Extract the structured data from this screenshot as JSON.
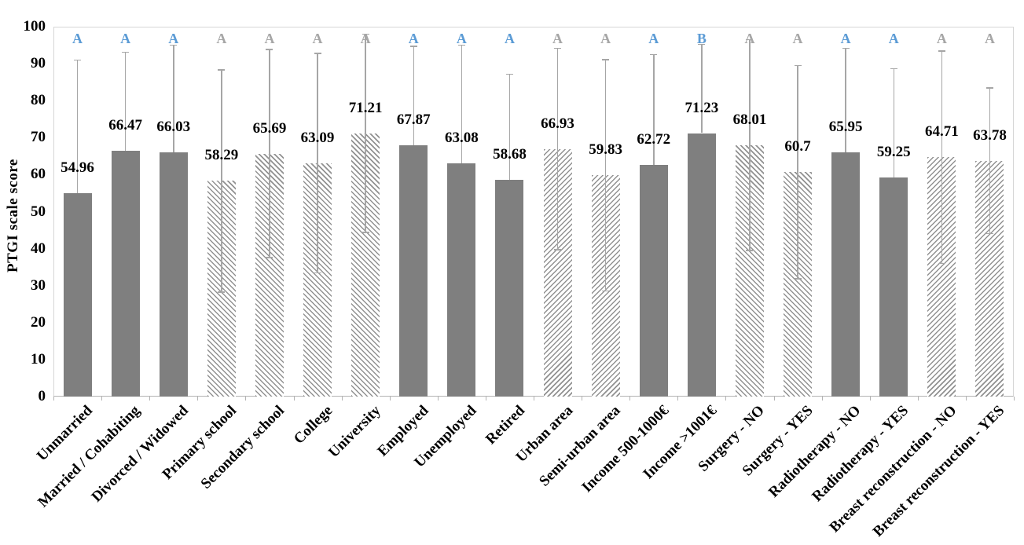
{
  "chart_data": {
    "type": "bar",
    "title": "",
    "xlabel": "",
    "ylabel": "PTGI scale score",
    "ylim": [
      0,
      100
    ],
    "yticks": [
      0,
      10,
      20,
      30,
      40,
      50,
      60,
      70,
      80,
      90,
      100
    ],
    "grid": "off",
    "legend": "none",
    "categories": [
      "Unmarried",
      "Married / Cohabiting",
      "Divorced / Widowed",
      "Primary school",
      "Secondary school",
      "College",
      "University",
      "Employed",
      "Unemployed",
      "Retired",
      "Urban area",
      "Semi-urban area",
      "Income 500-1000€",
      "Income >1001€",
      "Surgery - NO",
      "Surgery - YES",
      "Radiotherapy - NO",
      "Radiotherapy - YES",
      "Breast reconstruction - NO",
      "Breast reconstruction - YES"
    ],
    "values": [
      54.96,
      66.47,
      66.03,
      58.29,
      65.69,
      63.09,
      71.21,
      67.87,
      63.08,
      58.68,
      66.93,
      59.83,
      62.72,
      71.23,
      68.01,
      60.7,
      65.95,
      59.25,
      64.71,
      63.78
    ],
    "value_labels": [
      "54.96",
      "66.47",
      "66.03",
      "58.29",
      "65.69",
      "63.09",
      "71.21",
      "67.87",
      "63.08",
      "58.68",
      "66.93",
      "59.83",
      "62.72",
      "71.23",
      "68.01",
      "60.7",
      "65.95",
      "59.25",
      "64.71",
      "63.78"
    ],
    "error_sd_estimated": [
      36.0,
      26.6,
      29.0,
      30.0,
      28.1,
      29.7,
      26.8,
      26.8,
      31.9,
      28.5,
      27.2,
      31.3,
      29.7,
      24.0,
      28.5,
      28.8,
      28.2,
      29.4,
      28.7,
      19.7
    ],
    "bar_patterns": [
      "solid",
      "solid",
      "solid",
      "diag-back",
      "diag-back",
      "diag-back",
      "diag-back",
      "solid",
      "solid",
      "solid",
      "diag-fwd",
      "diag-fwd",
      "solid",
      "solid",
      "diag-back",
      "diag-back",
      "solid",
      "solid",
      "diag-fwd",
      "diag-fwd"
    ],
    "significance_letters": [
      "A",
      "A",
      "A",
      "A",
      "A",
      "A",
      "A",
      "A",
      "A",
      "A",
      "A",
      "A",
      "A",
      "B",
      "A",
      "A",
      "A",
      "A",
      "A",
      "A"
    ],
    "letter_colors": [
      "blue",
      "blue",
      "blue",
      "gray",
      "gray",
      "gray",
      "gray",
      "blue",
      "blue",
      "blue",
      "gray",
      "gray",
      "blue",
      "blue",
      "gray",
      "gray",
      "blue",
      "blue",
      "gray",
      "gray"
    ],
    "colors": {
      "bar_fill": "#7f7f7f",
      "hatch_line": "#919191",
      "error_bar": "#a6a6a6",
      "letter_blue": "#5b9bd5",
      "letter_gray": "#a6a6a6",
      "frame": "#d6d6d6",
      "axis_bottom": "#b3b3b3",
      "text": "#000000"
    }
  }
}
